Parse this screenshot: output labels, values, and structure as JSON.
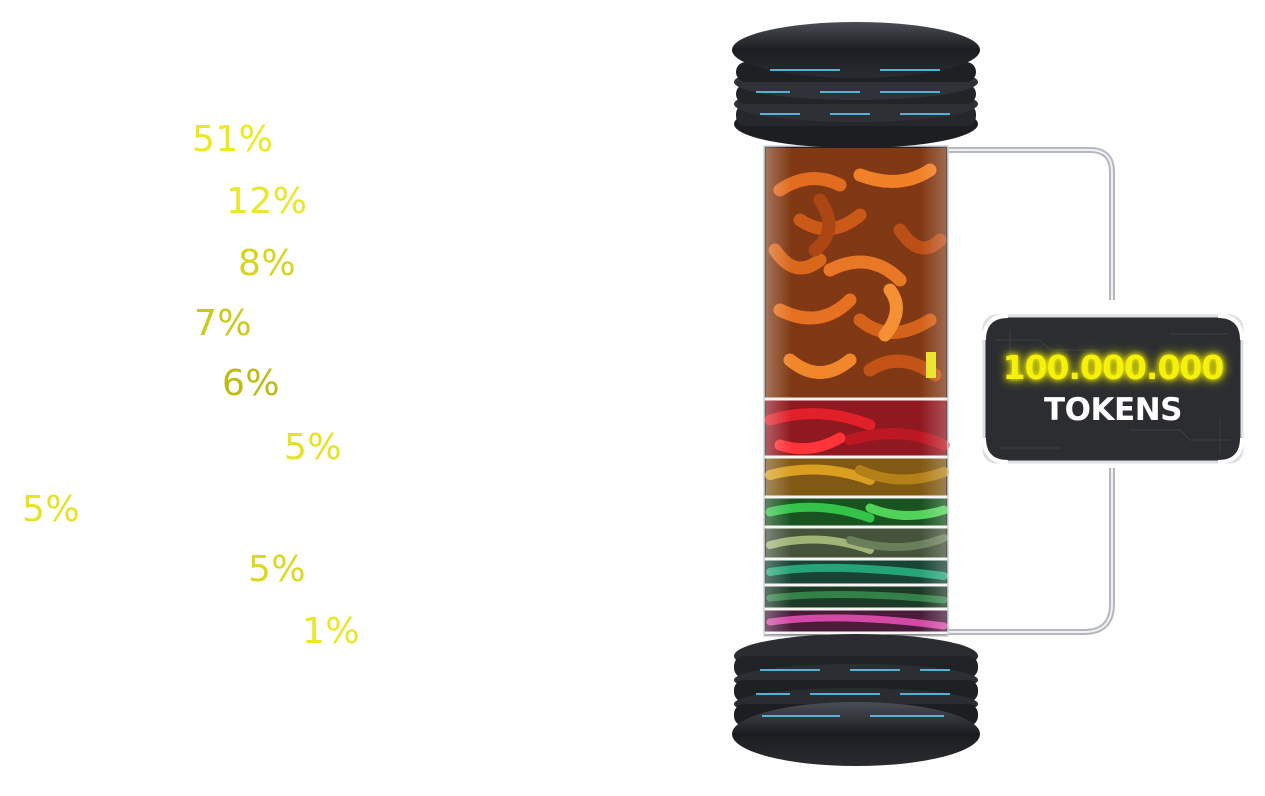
{
  "allocations": [
    {
      "percent": "51%",
      "color": "#ecea1a"
    },
    {
      "percent": "12%",
      "color": "#eae628"
    },
    {
      "percent": "8%",
      "color": "#d7d41e"
    },
    {
      "percent": "7%",
      "color": "#cbc91a"
    },
    {
      "percent": "6%",
      "color": "#bdbb16"
    },
    {
      "percent": "5%",
      "color": "#e6e224"
    },
    {
      "percent": "5%",
      "color": "#e6e224"
    },
    {
      "percent": "5%",
      "color": "#dcd81e"
    },
    {
      "percent": "1%",
      "color": "#eae628"
    }
  ],
  "token_badge": {
    "amount": "100.000.000",
    "unit": "TOKENS",
    "amount_color": "#f5f10a",
    "glow_color": "#fffb00"
  },
  "capsule": {
    "layer_colors": [
      "#c85010",
      "#c8101c",
      "#c88c10",
      "#20a030",
      "#608050",
      "#1a9060",
      "#a03080"
    ]
  }
}
